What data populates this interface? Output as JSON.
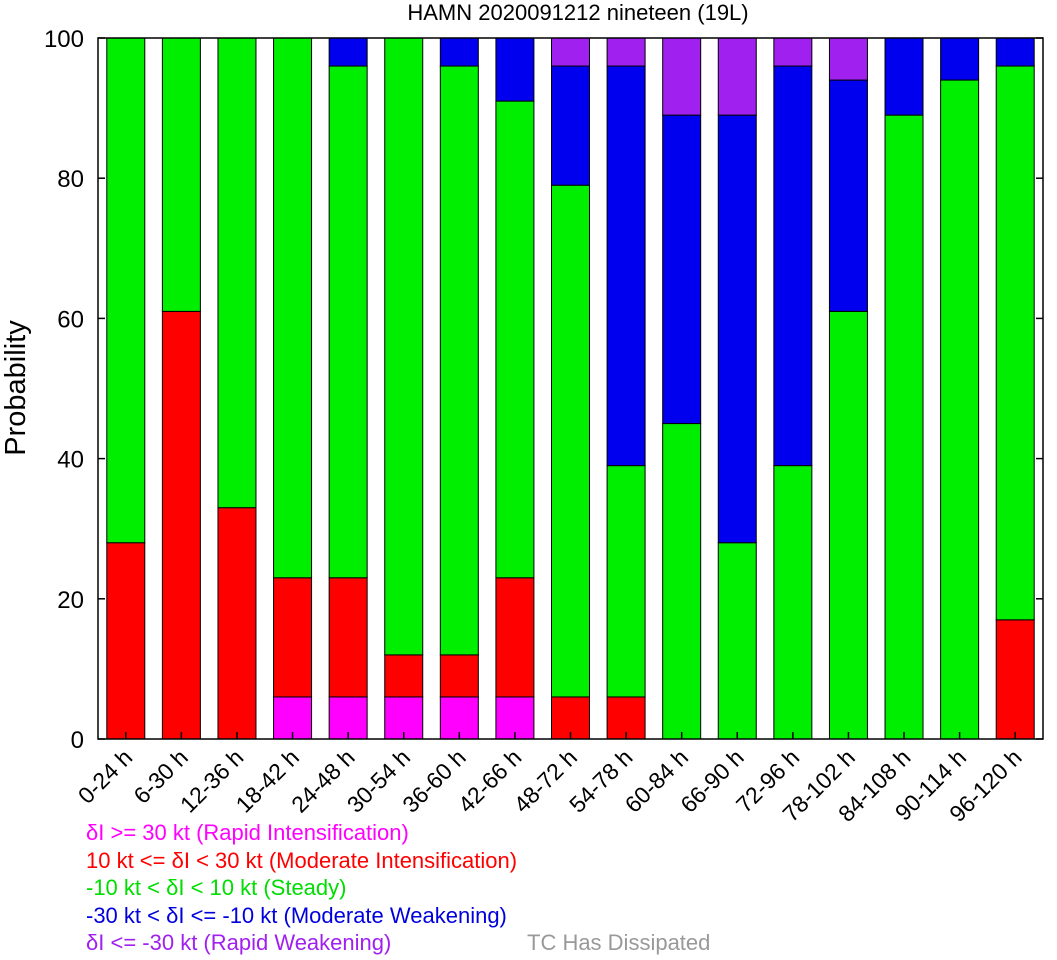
{
  "chart_data": {
    "type": "bar",
    "stacked": true,
    "title": "HAMN 2020091212 nineteen (19L)",
    "ylabel": "Probability",
    "xlabel": "",
    "ylim": [
      0,
      100
    ],
    "yticks": [
      0,
      20,
      40,
      60,
      80,
      100
    ],
    "categories": [
      "0-24 h",
      "6-30 h",
      "12-36 h",
      "18-42 h",
      "24-48 h",
      "30-54 h",
      "36-60 h",
      "42-66 h",
      "48-72 h",
      "54-78 h",
      "60-84 h",
      "66-90 h",
      "72-96 h",
      "78-102 h",
      "84-108 h",
      "90-114 h",
      "96-120 h"
    ],
    "series": [
      {
        "name": "δI >= 30 kt (Rapid Intensification)",
        "color": "#ff00ff",
        "values": [
          0,
          0,
          0,
          6,
          6,
          6,
          6,
          6,
          0,
          0,
          0,
          0,
          0,
          0,
          0,
          0,
          0
        ]
      },
      {
        "name": "10 kt <= δI < 30 kt (Moderate Intensification)",
        "color": "#ff0000",
        "values": [
          28,
          61,
          33,
          17,
          17,
          6,
          6,
          17,
          6,
          6,
          0,
          0,
          0,
          0,
          0,
          0,
          17
        ]
      },
      {
        "name": "-10 kt < δI < 10 kt (Steady)",
        "color": "#00ee00",
        "values": [
          72,
          39,
          67,
          77,
          73,
          88,
          84,
          68,
          73,
          33,
          45,
          28,
          39,
          61,
          89,
          94,
          79
        ]
      },
      {
        "name": "-30 kt < δI <= -10 kt (Moderate Weakening)",
        "color": "#0000ee",
        "values": [
          0,
          0,
          0,
          0,
          4,
          0,
          4,
          9,
          17,
          57,
          44,
          61,
          57,
          33,
          11,
          6,
          4
        ]
      },
      {
        "name": "δI <= -30 kt (Rapid Weakening)",
        "color": "#a020f0",
        "values": [
          0,
          0,
          0,
          0,
          0,
          0,
          0,
          0,
          4,
          4,
          11,
          11,
          4,
          6,
          0,
          0,
          0
        ]
      }
    ],
    "grid": false,
    "legend_position": "bottom"
  },
  "legend": {
    "items": [
      {
        "text": "δI >= 30 kt (Rapid Intensification)",
        "color": "#ff00ff"
      },
      {
        "text": "10 kt <= δI < 30 kt (Moderate Intensification)",
        "color": "#ff0000"
      },
      {
        "text": "-10 kt < δI < 10 kt (Steady)",
        "color": "#00dd00"
      },
      {
        "text": "-30 kt < δI <= -10 kt (Moderate Weakening)",
        "color": "#0000dd"
      },
      {
        "text": "δI <= -30 kt (Rapid Weakening)",
        "color": "#a020f0"
      }
    ],
    "dissipated": {
      "text": "TC Has Dissipated",
      "color": "#999999"
    }
  }
}
